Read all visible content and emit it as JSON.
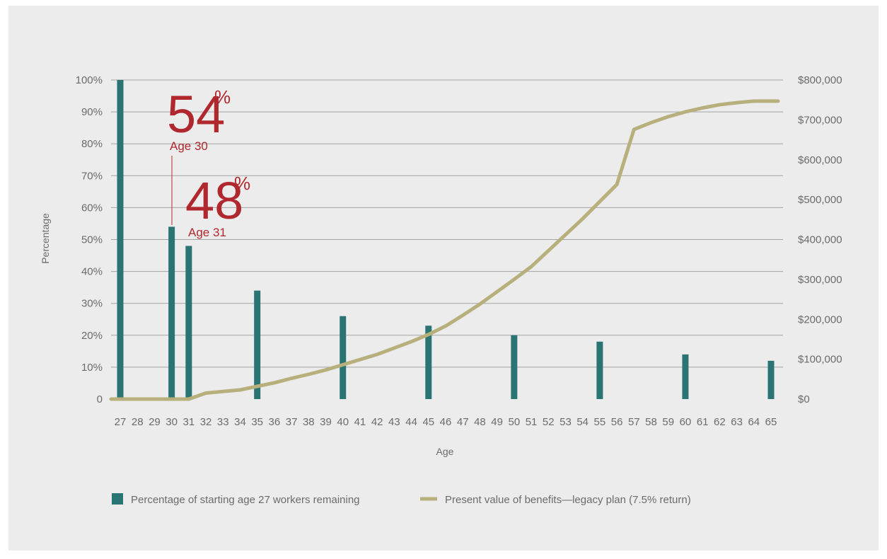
{
  "chart_data": {
    "type": "bar",
    "xlabel": "Age",
    "ylabel": "Percentage",
    "x": [
      27,
      28,
      29,
      30,
      31,
      32,
      33,
      34,
      35,
      36,
      37,
      38,
      39,
      40,
      41,
      42,
      43,
      44,
      45,
      46,
      47,
      48,
      49,
      50,
      51,
      52,
      53,
      54,
      55,
      56,
      57,
      58,
      59,
      60,
      61,
      62,
      63,
      64,
      65
    ],
    "y_left_ticks": [
      "0",
      "10%",
      "20%",
      "30%",
      "40%",
      "50%",
      "60%",
      "70%",
      "80%",
      "90%",
      "100%"
    ],
    "y_left_lim": [
      0,
      100
    ],
    "y_right_ticks": [
      "$0",
      "$100,000",
      "$200,000",
      "$300,000",
      "$400,000",
      "$500,000",
      "$600,000",
      "$700,000",
      "$800,000"
    ],
    "y_right_lim": [
      0,
      800000
    ],
    "grid": true,
    "legend_position": "bottom",
    "series": [
      {
        "name": "Percentage of starting age 27 workers remaining",
        "type": "bar",
        "axis": "left",
        "color": "#2a7573",
        "points": [
          [
            27,
            100
          ],
          [
            30,
            54
          ],
          [
            31,
            48
          ],
          [
            35,
            34
          ],
          [
            40,
            26
          ],
          [
            45,
            23
          ],
          [
            50,
            20
          ],
          [
            55,
            18
          ],
          [
            60,
            14
          ],
          [
            65,
            12
          ]
        ]
      },
      {
        "name": "Present value of benefits—legacy plan (7.5% return)",
        "type": "line",
        "axis": "right",
        "color": "#b7b07d",
        "points": [
          [
            27,
            0
          ],
          [
            28,
            0
          ],
          [
            29,
            0
          ],
          [
            30,
            0
          ],
          [
            31,
            0
          ],
          [
            32,
            15000
          ],
          [
            33,
            19000
          ],
          [
            34,
            23000
          ],
          [
            35,
            32000
          ],
          [
            36,
            41000
          ],
          [
            37,
            52000
          ],
          [
            38,
            62000
          ],
          [
            39,
            73000
          ],
          [
            40,
            86000
          ],
          [
            41,
            99000
          ],
          [
            42,
            112000
          ],
          [
            43,
            128000
          ],
          [
            44,
            144000
          ],
          [
            45,
            162000
          ],
          [
            46,
            183000
          ],
          [
            47,
            210000
          ],
          [
            48,
            238000
          ],
          [
            49,
            269000
          ],
          [
            50,
            300000
          ],
          [
            51,
            332000
          ],
          [
            52,
            372000
          ],
          [
            53,
            412000
          ],
          [
            54,
            452000
          ],
          [
            55,
            495000
          ],
          [
            56,
            538000
          ],
          [
            57,
            676000
          ],
          [
            58,
            693000
          ],
          [
            59,
            708000
          ],
          [
            60,
            720000
          ],
          [
            61,
            730000
          ],
          [
            62,
            738000
          ],
          [
            63,
            743000
          ],
          [
            64,
            747000
          ],
          [
            65,
            747000
          ]
        ]
      }
    ],
    "annotations": [
      {
        "value": "54",
        "unit": "%",
        "label": "Age 30"
      },
      {
        "value": "48",
        "unit": "%",
        "label": "Age 31"
      }
    ]
  }
}
